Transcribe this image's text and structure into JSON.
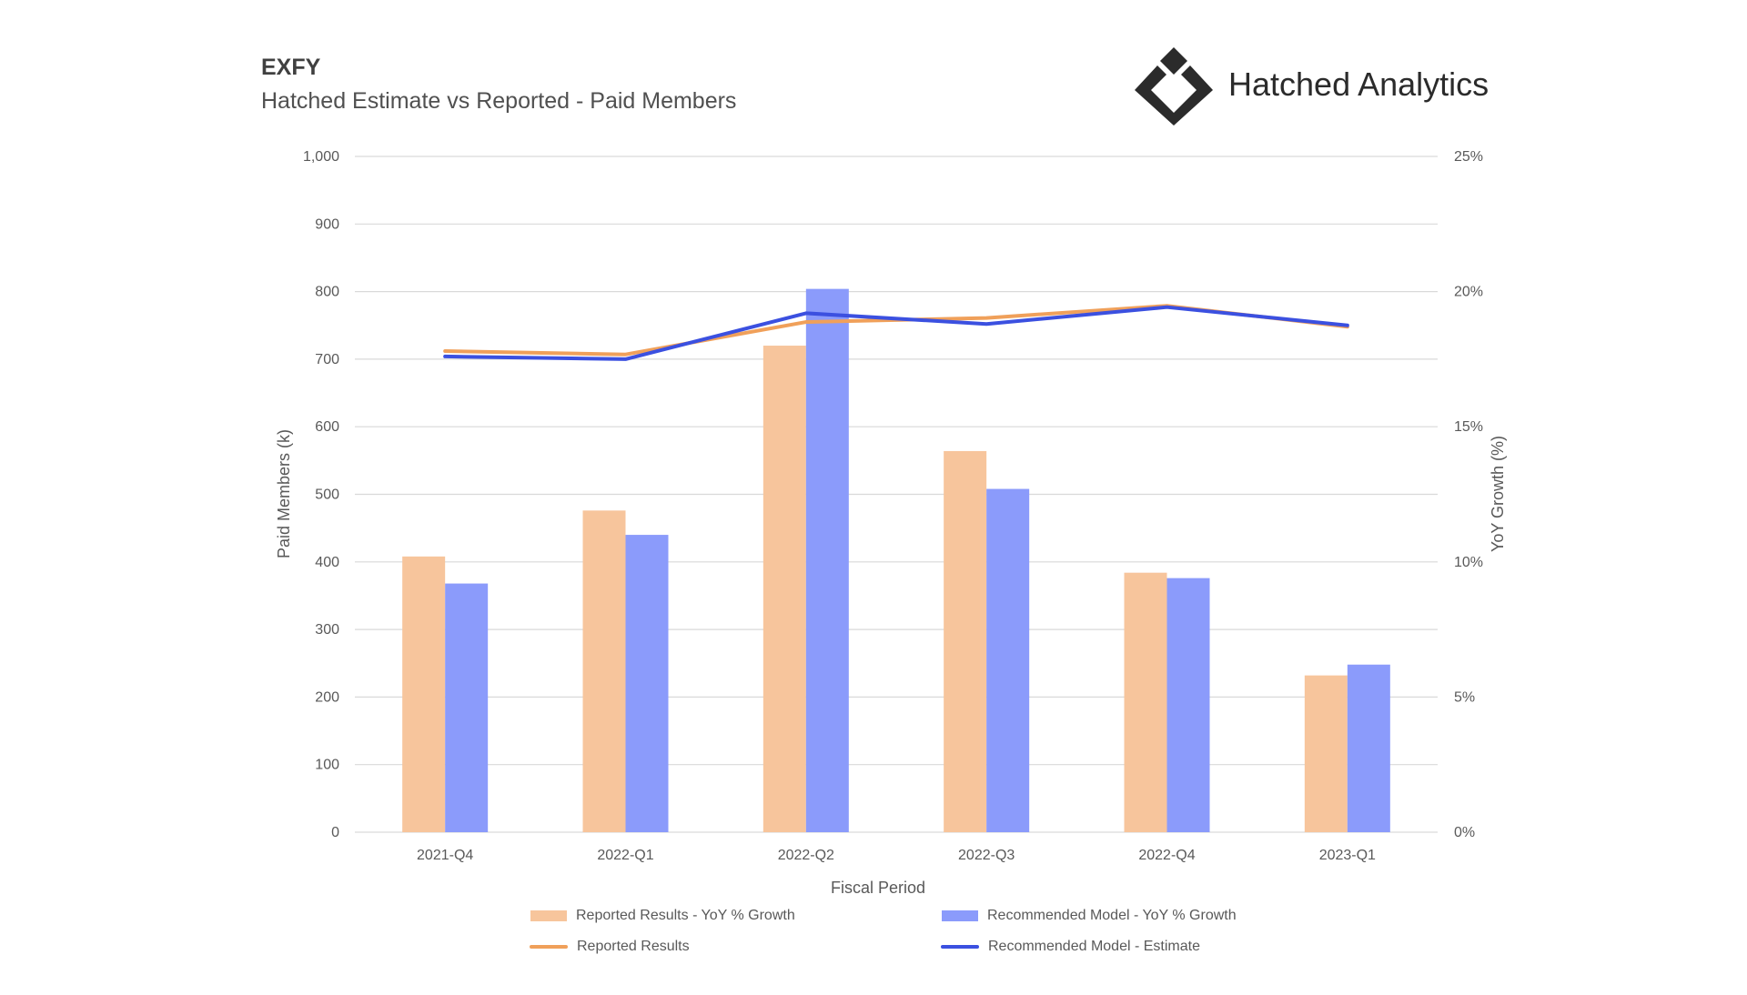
{
  "header": {
    "ticker": "EXFY",
    "subtitle": "Hatched Estimate vs Reported - Paid Members"
  },
  "brand": {
    "name": "Hatched Analytics",
    "logo_icon": "diamond-logo-icon"
  },
  "colors": {
    "reported_bar": "#F7C59C",
    "model_bar": "#8B9BFB",
    "reported_line": "#F0A05A",
    "model_line": "#3B50E0",
    "grid": "#D9D9D9"
  },
  "chart_data": {
    "type": "bar",
    "categories": [
      "2021-Q4",
      "2022-Q1",
      "2022-Q2",
      "2022-Q3",
      "2022-Q4",
      "2023-Q1"
    ],
    "xlabel": "Fiscal Period",
    "ylabel": "Paid Members (k)",
    "y2label": "YoY Growth (%)",
    "ylim": [
      0,
      1000
    ],
    "y2lim": [
      0,
      25
    ],
    "yticks": [
      "0",
      "100",
      "200",
      "300",
      "400",
      "500",
      "600",
      "700",
      "800",
      "900",
      "1,000"
    ],
    "y2ticks": [
      "0%",
      "5%",
      "10%",
      "15%",
      "20%",
      "25%"
    ],
    "grid": true,
    "legend_position": "bottom",
    "series": [
      {
        "name": "Reported Results - YoY % Growth",
        "type": "bar",
        "axis": "right",
        "values": [
          10.2,
          11.9,
          18.0,
          14.1,
          9.6,
          5.8
        ]
      },
      {
        "name": "Recommended Model - YoY % Growth",
        "type": "bar",
        "axis": "right",
        "values": [
          9.2,
          11.0,
          20.1,
          12.7,
          9.4,
          6.2
        ]
      },
      {
        "name": "Reported Results",
        "type": "line",
        "axis": "left",
        "values": [
          712,
          707,
          755,
          761,
          779,
          748
        ]
      },
      {
        "name": "Recommended Model - Estimate",
        "type": "line",
        "axis": "left",
        "values": [
          704,
          700,
          768,
          752,
          777,
          750
        ]
      }
    ]
  }
}
